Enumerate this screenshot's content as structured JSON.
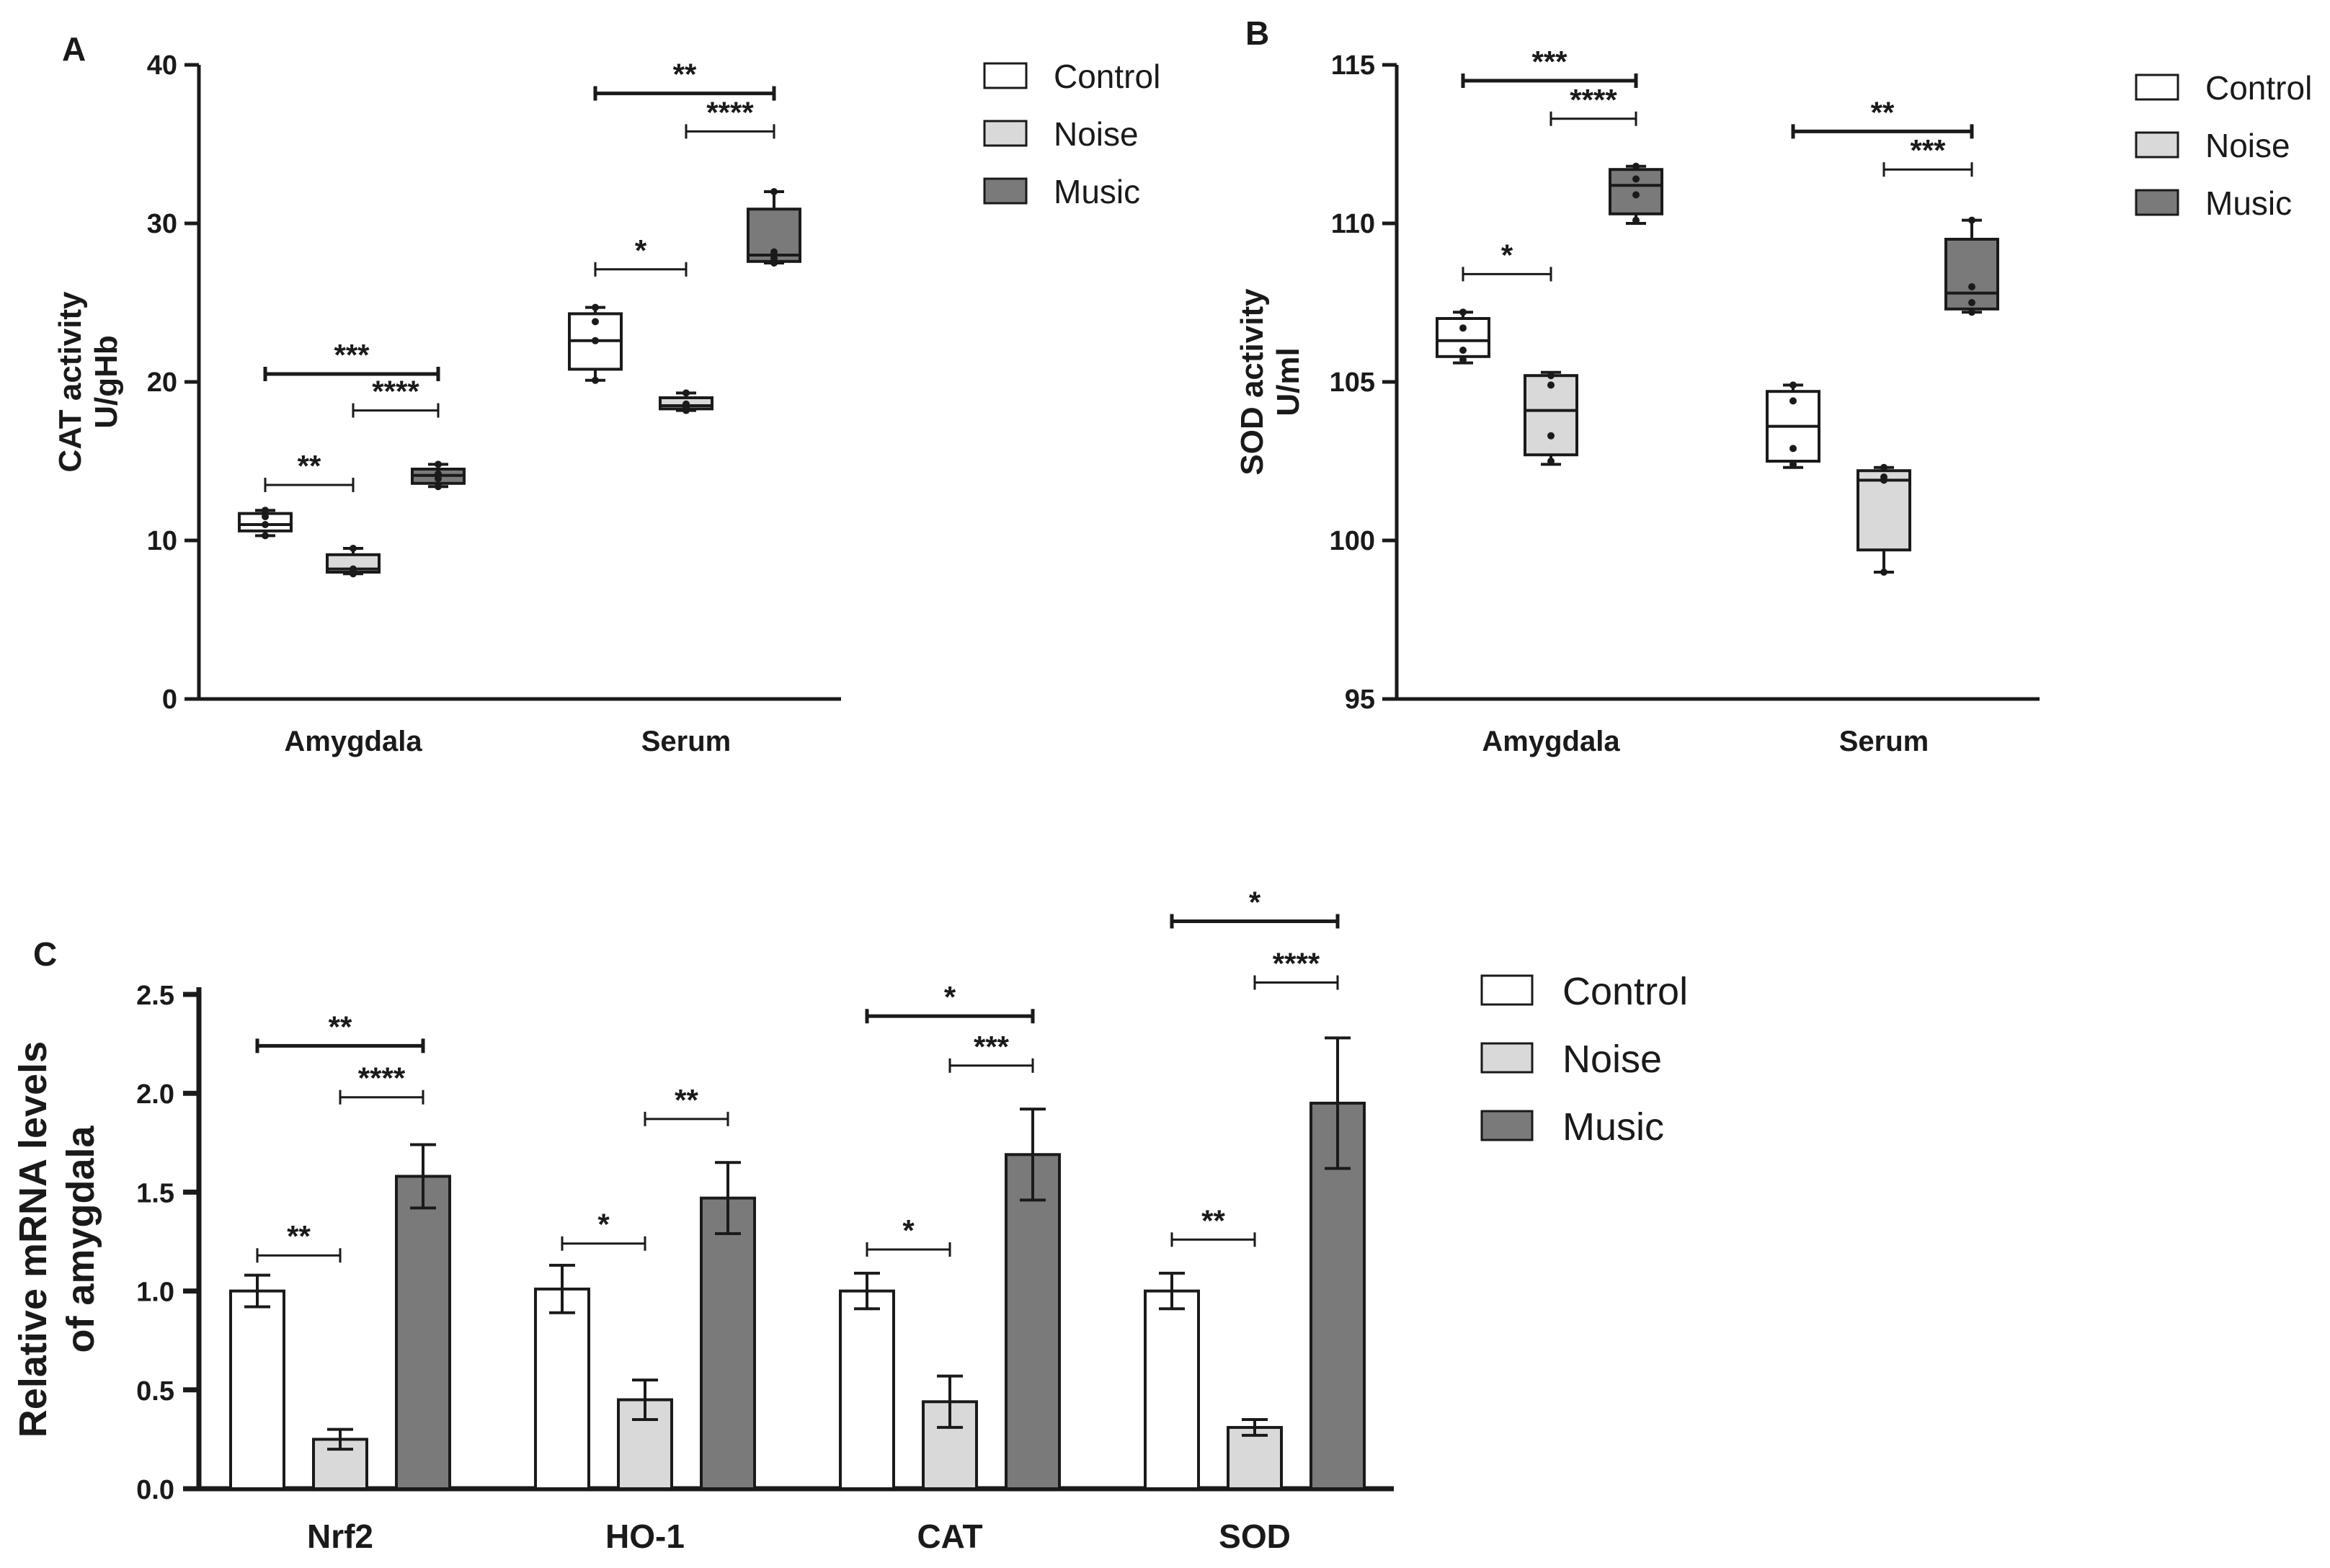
{
  "colors": {
    "control": "#ffffff",
    "noise": "#d9d9d9",
    "music": "#7a7a7a",
    "ink": "#1a1a1a"
  },
  "chart_data": [
    {
      "panel": "A",
      "type": "box",
      "ylabel": [
        "CAT activity",
        "U/gHb"
      ],
      "ylim": [
        0,
        40
      ],
      "yticks": [
        0,
        10,
        20,
        30,
        40
      ],
      "categories": [
        "Amygdala",
        "Serum"
      ],
      "legend": [
        "Control",
        "Noise",
        "Music"
      ],
      "groups": [
        {
          "category": "Amygdala",
          "boxes": [
            {
              "series": "Control",
              "min": 10.3,
              "q1": 10.6,
              "median": 11.0,
              "q3": 11.7,
              "max": 11.9,
              "points": [
                10.3,
                11.0,
                11.5,
                11.9
              ]
            },
            {
              "series": "Noise",
              "min": 7.9,
              "q1": 8.0,
              "median": 8.2,
              "q3": 9.1,
              "max": 9.5,
              "points": [
                7.9,
                8.1,
                8.2,
                9.5
              ]
            },
            {
              "series": "Music",
              "min": 13.4,
              "q1": 13.6,
              "median": 14.1,
              "q3": 14.5,
              "max": 14.8,
              "points": [
                13.4,
                13.9,
                14.2,
                14.8
              ]
            }
          ],
          "annotations": [
            {
              "from": 0,
              "to": 2,
              "label": "***",
              "y": 20.5
            },
            {
              "from": 1,
              "to": 2,
              "label": "****",
              "y": 18.2
            },
            {
              "from": 0,
              "to": 1,
              "label": "**",
              "y": 13.5
            }
          ]
        },
        {
          "category": "Serum",
          "boxes": [
            {
              "series": "Control",
              "min": 20.1,
              "q1": 20.8,
              "median": 22.6,
              "q3": 24.3,
              "max": 24.7,
              "points": [
                20.1,
                22.6,
                23.8,
                24.7
              ]
            },
            {
              "series": "Noise",
              "min": 18.2,
              "q1": 18.3,
              "median": 18.5,
              "q3": 19.0,
              "max": 19.3,
              "points": [
                18.2,
                18.4,
                18.6,
                19.3
              ]
            },
            {
              "series": "Music",
              "min": 27.5,
              "q1": 27.6,
              "median": 28.0,
              "q3": 30.9,
              "max": 32.0,
              "points": [
                27.5,
                27.8,
                28.2,
                32.0
              ]
            }
          ],
          "annotations": [
            {
              "from": 0,
              "to": 2,
              "label": "**",
              "y": 38.2
            },
            {
              "from": 1,
              "to": 2,
              "label": "****",
              "y": 35.8
            },
            {
              "from": 0,
              "to": 1,
              "label": "*",
              "y": 27.1
            }
          ]
        }
      ]
    },
    {
      "panel": "B",
      "type": "box",
      "ylabel": [
        "SOD activity",
        "U/ml"
      ],
      "ylim": [
        95,
        115
      ],
      "yticks": [
        95,
        100,
        105,
        110,
        115
      ],
      "categories": [
        "Amygdala",
        "Serum"
      ],
      "legend": [
        "Control",
        "Noise",
        "Music"
      ],
      "groups": [
        {
          "category": "Amygdala",
          "boxes": [
            {
              "series": "Control",
              "min": 105.6,
              "q1": 105.8,
              "median": 106.3,
              "q3": 107.0,
              "max": 107.2,
              "points": [
                105.7,
                106.0,
                106.7,
                107.2
              ]
            },
            {
              "series": "Noise",
              "min": 102.4,
              "q1": 102.7,
              "median": 104.1,
              "q3": 105.2,
              "max": 105.3,
              "points": [
                102.5,
                103.3,
                104.9,
                105.2
              ]
            },
            {
              "series": "Music",
              "min": 110.0,
              "q1": 110.3,
              "median": 111.2,
              "q3": 111.7,
              "max": 111.8,
              "points": [
                110.1,
                110.9,
                111.4,
                111.8
              ]
            }
          ],
          "annotations": [
            {
              "from": 0,
              "to": 2,
              "label": "***",
              "y": 114.5
            },
            {
              "from": 1,
              "to": 2,
              "label": "****",
              "y": 113.3
            },
            {
              "from": 0,
              "to": 1,
              "label": "*",
              "y": 108.4
            }
          ]
        },
        {
          "category": "Serum",
          "boxes": [
            {
              "series": "Control",
              "min": 102.3,
              "q1": 102.5,
              "median": 103.6,
              "q3": 104.7,
              "max": 104.9,
              "points": [
                102.4,
                102.9,
                104.4,
                104.9
              ]
            },
            {
              "series": "Noise",
              "min": 99.0,
              "q1": 99.7,
              "median": 101.9,
              "q3": 102.2,
              "max": 102.3,
              "points": [
                99.0,
                101.9,
                102.0,
                102.3
              ]
            },
            {
              "series": "Music",
              "min": 107.2,
              "q1": 107.3,
              "median": 107.8,
              "q3": 109.5,
              "max": 110.1,
              "points": [
                107.2,
                107.5,
                108.0,
                110.1
              ]
            }
          ],
          "annotations": [
            {
              "from": 0,
              "to": 2,
              "label": "**",
              "y": 112.9
            },
            {
              "from": 1,
              "to": 2,
              "label": "***",
              "y": 111.7
            },
            {
              "from": 0,
              "to": 1,
              "label": "",
              "y": 0,
              "hidden": true
            }
          ]
        }
      ]
    },
    {
      "panel": "C",
      "type": "bar",
      "ylabel": [
        "Relative mRNA levels",
        "of amygdala"
      ],
      "ylim": [
        0,
        2.5
      ],
      "yticks": [
        "0.0",
        "0.5",
        "1.0",
        "1.5",
        "2.0",
        "2.5"
      ],
      "categories": [
        "Nrf2",
        "HO-1",
        "CAT",
        "SOD"
      ],
      "legend": [
        "Control",
        "Noise",
        "Music"
      ],
      "series": [
        {
          "name": "Control",
          "values": [
            1.0,
            1.01,
            1.0,
            1.0
          ],
          "errors": [
            0.08,
            0.12,
            0.09,
            0.09
          ]
        },
        {
          "name": "Noise",
          "values": [
            0.25,
            0.45,
            0.44,
            0.31
          ],
          "errors": [
            0.05,
            0.1,
            0.13,
            0.04
          ]
        },
        {
          "name": "Music",
          "values": [
            1.58,
            1.47,
            1.69,
            1.95
          ],
          "errors": [
            0.16,
            0.18,
            0.23,
            0.33
          ]
        }
      ],
      "annotations": [
        {
          "category": 0,
          "from": 0,
          "to": 2,
          "label": "**",
          "y": 2.24
        },
        {
          "category": 0,
          "from": 1,
          "to": 2,
          "label": "****",
          "y": 1.98
        },
        {
          "category": 0,
          "from": 0,
          "to": 1,
          "label": "**",
          "y": 1.18
        },
        {
          "category": 1,
          "from": 1,
          "to": 2,
          "label": "**",
          "y": 1.87
        },
        {
          "category": 1,
          "from": 0,
          "to": 1,
          "label": "*",
          "y": 1.24
        },
        {
          "category": 2,
          "from": 0,
          "to": 2,
          "label": "*",
          "y": 2.39
        },
        {
          "category": 2,
          "from": 1,
          "to": 2,
          "label": "***",
          "y": 2.14
        },
        {
          "category": 2,
          "from": 0,
          "to": 1,
          "label": "*",
          "y": 1.21
        },
        {
          "category": 3,
          "from": 0,
          "to": 2,
          "label": "*",
          "y": 2.87
        },
        {
          "category": 3,
          "from": 1,
          "to": 2,
          "label": "****",
          "y": 2.56
        },
        {
          "category": 3,
          "from": 0,
          "to": 1,
          "label": "**",
          "y": 1.26
        }
      ]
    }
  ]
}
